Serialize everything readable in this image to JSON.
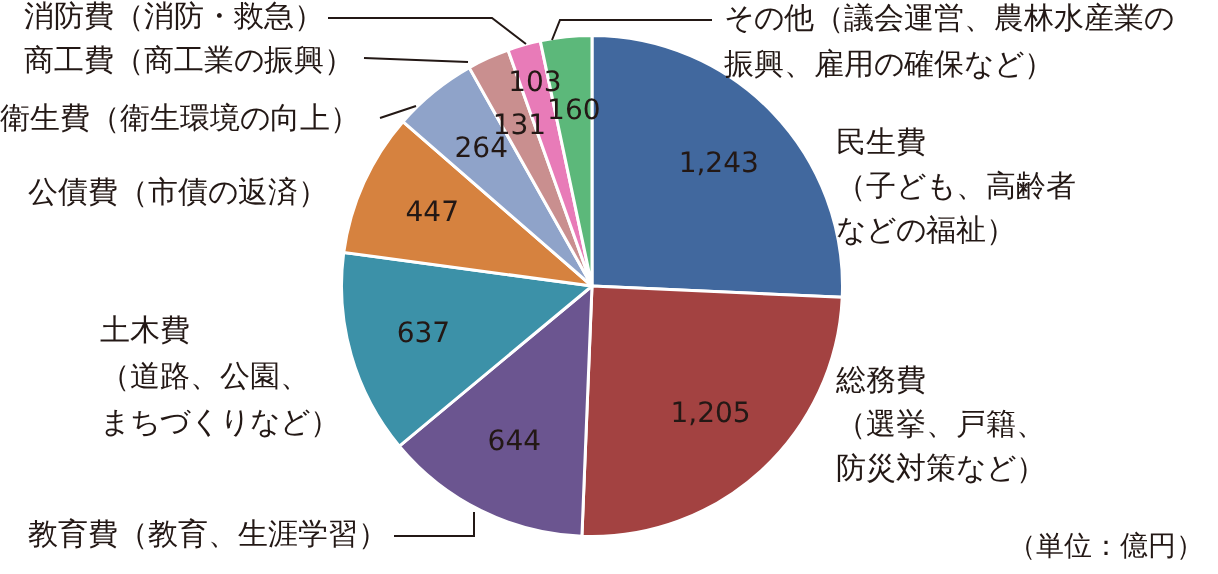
{
  "chart_data": {
    "type": "pie",
    "categories": [
      "民生費（子ども、高齢者などの福祉）",
      "総務費（選挙、戸籍、防災対策など）",
      "教育費（教育、生涯学習）",
      "土木費（道路、公園、まちづくりなど）",
      "公債費（市債の返済）",
      "衛生費（衛生環境の向上）",
      "商工費（商工業の振興）",
      "消防費（消防・救急）",
      "その他（議会運営、農林水産業の振興、雇用の確保など）"
    ],
    "values": [
      1243,
      1205,
      644,
      637,
      447,
      264,
      131,
      103,
      160
    ],
    "colors": [
      "#41689e",
      "#a34241",
      "#6b5590",
      "#3c91a8",
      "#d6823f",
      "#8fa3c9",
      "#c98f8f",
      "#e87bb8",
      "#5cb87a"
    ],
    "value_labels": [
      "1,243",
      "1,205",
      "644",
      "637",
      "447",
      "264",
      "131",
      "103",
      "160"
    ],
    "legend": false,
    "annotations": [
      "（単位：億円）"
    ]
  }
}
